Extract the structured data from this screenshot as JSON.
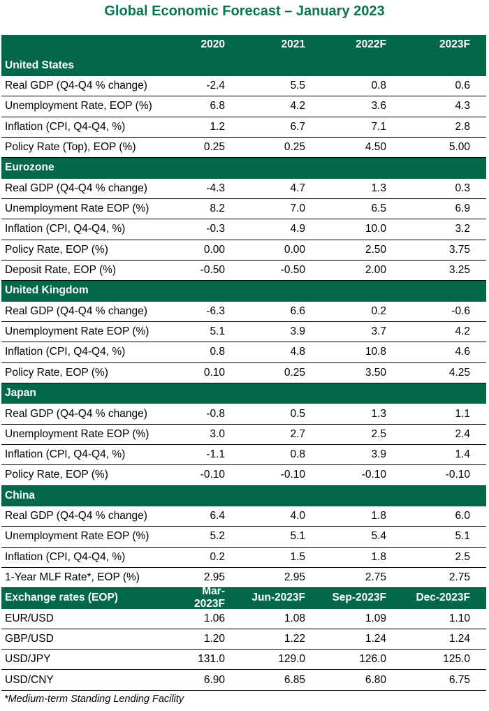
{
  "title": "Global Economic Forecast – January 2023",
  "columns": [
    "2020",
    "2021",
    "2022F",
    "2023F"
  ],
  "sections": [
    {
      "name": "United States",
      "rows": [
        {
          "label": "Real GDP (Q4-Q4 % change)",
          "values": [
            "-2.4",
            "5.5",
            "0.8",
            "0.6"
          ]
        },
        {
          "label": "Unemployment Rate, EOP (%)",
          "values": [
            "6.8",
            "4.2",
            "3.6",
            "4.3"
          ]
        },
        {
          "label": "Inflation (CPI, Q4-Q4, %)",
          "values": [
            "1.2",
            "6.7",
            "7.1",
            "2.8"
          ]
        },
        {
          "label": "Policy Rate (Top), EOP (%)",
          "values": [
            "0.25",
            "0.25",
            "4.50",
            "5.00"
          ]
        }
      ]
    },
    {
      "name": "Eurozone",
      "rows": [
        {
          "label": "Real GDP (Q4-Q4 % change)",
          "values": [
            "-4.3",
            "4.7",
            "1.3",
            "0.3"
          ]
        },
        {
          "label": "Unemployment Rate EOP (%)",
          "values": [
            "8.2",
            "7.0",
            "6.5",
            "6.9"
          ]
        },
        {
          "label": "Inflation (CPI, Q4-Q4, %)",
          "values": [
            "-0.3",
            "4.9",
            "10.0",
            "3.2"
          ]
        },
        {
          "label": "Policy Rate, EOP (%)",
          "values": [
            "0.00",
            "0.00",
            "2.50",
            "3.75"
          ]
        },
        {
          "label": "Deposit Rate, EOP (%)",
          "values": [
            "-0.50",
            "-0.50",
            "2.00",
            "3.25"
          ]
        }
      ]
    },
    {
      "name": "United Kingdom",
      "rows": [
        {
          "label": "Real GDP (Q4-Q4 % change)",
          "values": [
            "-6.3",
            "6.6",
            "0.2",
            "-0.6"
          ]
        },
        {
          "label": "Unemployment Rate EOP (%)",
          "values": [
            "5.1",
            "3.9",
            "3.7",
            "4.2"
          ]
        },
        {
          "label": "Inflation (CPI, Q4-Q4, %)",
          "values": [
            "0.8",
            "4.8",
            "10.8",
            "4.6"
          ]
        },
        {
          "label": "Policy Rate, EOP (%)",
          "values": [
            "0.10",
            "0.25",
            "3.50",
            "4.25"
          ]
        }
      ]
    },
    {
      "name": "Japan",
      "rows": [
        {
          "label": "Real GDP (Q4-Q4 % change)",
          "values": [
            "-0.8",
            "0.5",
            "1.3",
            "1.1"
          ]
        },
        {
          "label": "Unemployment Rate EOP (%)",
          "values": [
            "3.0",
            "2.7",
            "2.5",
            "2.4"
          ]
        },
        {
          "label": "Inflation (CPI, Q4-Q4, %)",
          "values": [
            "-1.1",
            "0.8",
            "3.9",
            "1.4"
          ]
        },
        {
          "label": "Policy Rate, EOP (%)",
          "values": [
            "-0.10",
            "-0.10",
            "-0.10",
            "-0.10"
          ]
        }
      ]
    },
    {
      "name": "China",
      "rows": [
        {
          "label": "Real GDP (Q4-Q4 % change)",
          "values": [
            "6.4",
            "4.0",
            "1.8",
            "6.0"
          ]
        },
        {
          "label": "Unemployment Rate EOP (%)",
          "values": [
            "5.2",
            "5.1",
            "5.4",
            "5.1"
          ]
        },
        {
          "label": "Inflation (CPI, Q4-Q4, %)",
          "values": [
            "0.2",
            "1.5",
            "1.8",
            "2.5"
          ]
        },
        {
          "label": "1-Year MLF Rate*, EOP (%)",
          "values": [
            "2.95",
            "2.95",
            "2.75",
            "2.75"
          ]
        }
      ]
    }
  ],
  "fx": {
    "header_label": "Exchange rates (EOP)",
    "columns": [
      "Mar-2023F",
      "Jun-2023F",
      "Sep-2023F",
      "Dec-2023F"
    ],
    "rows": [
      {
        "label": "EUR/USD",
        "values": [
          "1.06",
          "1.08",
          "1.09",
          "1.10"
        ]
      },
      {
        "label": "GBP/USD",
        "values": [
          "1.20",
          "1.22",
          "1.24",
          "1.24"
        ]
      },
      {
        "label": "USD/JPY",
        "values": [
          "131.0",
          "129.0",
          "126.0",
          "125.0"
        ]
      },
      {
        "label": "USD/CNY",
        "values": [
          "6.90",
          "6.85",
          "6.80",
          "6.75"
        ]
      }
    ]
  },
  "footnote": "*Medium-term Standing Lending Facility",
  "colors": {
    "title": "#0a7550",
    "header_fill": "#03674a"
  }
}
